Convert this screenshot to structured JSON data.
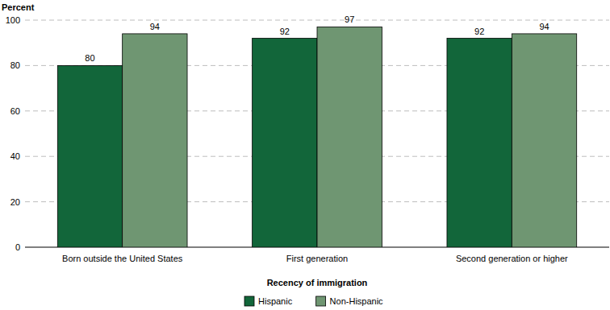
{
  "chart_data": {
    "type": "bar",
    "y_label": "Percent",
    "x_label": "Recency of immigration",
    "categories": [
      "Born outside the United States",
      "First generation",
      "Second generation or higher"
    ],
    "series": [
      {
        "name": "Hispanic",
        "color": "#12663a",
        "values": [
          80,
          92,
          92
        ]
      },
      {
        "name": "Non-Hispanic",
        "color": "#6f9672",
        "values": [
          94,
          97,
          94
        ]
      }
    ],
    "ylim": [
      0,
      100
    ],
    "yticks": [
      0,
      20,
      40,
      60,
      80,
      100
    ],
    "grid": true,
    "data_labels": true,
    "legend": "bottom"
  }
}
